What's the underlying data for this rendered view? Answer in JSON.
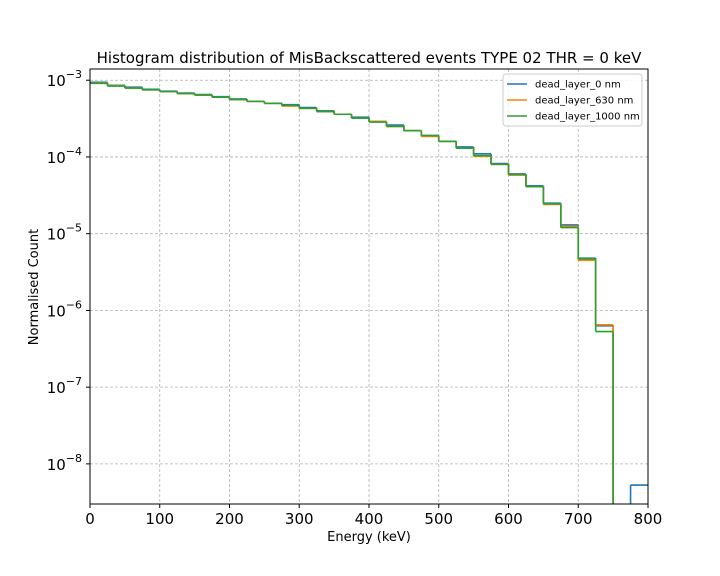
{
  "chart_data": {
    "type": "line",
    "drawstyle": "steps",
    "title": "Histogram distribution of MisBackscattered events TYPE 02 THR = 0 keV",
    "xlabel": "Energy (keV)",
    "ylabel": "Normalised Count",
    "xlim": [
      0,
      800
    ],
    "ylim": [
      3e-09,
      0.0014
    ],
    "yscale": "log",
    "x_ticks": [
      0,
      100,
      200,
      300,
      400,
      500,
      600,
      700,
      800
    ],
    "x_tick_labels": [
      "0",
      "100",
      "200",
      "300",
      "400",
      "500",
      "600",
      "700",
      "800"
    ],
    "y_ticks": [
      1e-08,
      1e-07,
      1e-06,
      1e-05,
      0.0001,
      0.001
    ],
    "y_tick_labels": [
      {
        "base": "10",
        "exp": "−8"
      },
      {
        "base": "10",
        "exp": "−7"
      },
      {
        "base": "10",
        "exp": "−6"
      },
      {
        "base": "10",
        "exp": "−5"
      },
      {
        "base": "10",
        "exp": "−4"
      },
      {
        "base": "10",
        "exp": "−3"
      }
    ],
    "grid": true,
    "legend_position": "top-right",
    "bin_edges": [
      0,
      25,
      50,
      75,
      100,
      125,
      150,
      175,
      200,
      225,
      250,
      275,
      300,
      325,
      350,
      375,
      400,
      425,
      450,
      475,
      500,
      525,
      550,
      575,
      600,
      625,
      650,
      675,
      700,
      725,
      750,
      775
    ],
    "series": [
      {
        "name": "dead_layer_0 nm",
        "color": "#1f77b4",
        "values": [
          0.00094,
          0.00086,
          0.00081,
          0.00076,
          0.00072,
          0.00068,
          0.00065,
          0.00061,
          0.00057,
          0.00053,
          0.0005,
          0.00048,
          0.00044,
          0.0004,
          0.00036,
          0.00033,
          0.00029,
          0.00026,
          0.00022,
          0.00019,
          0.00016,
          0.000135,
          0.00011,
          8.2e-05,
          6e-05,
          4.2e-05,
          2.5e-05,
          1.3e-05,
          4.8e-06,
          6.3e-07,
          0,
          5.3e-09
        ]
      },
      {
        "name": "dead_layer_630 nm",
        "color": "#ff7f0e",
        "values": [
          0.00092,
          0.00085,
          0.00079,
          0.00075,
          0.00071,
          0.00067,
          0.00064,
          0.0006,
          0.00056,
          0.00053,
          0.0005,
          0.00046,
          0.00043,
          0.00039,
          0.00036,
          0.00032,
          0.00029,
          0.00025,
          0.00022,
          0.000185,
          0.00016,
          0.00013,
          0.000102,
          8e-05,
          5.8e-05,
          4.1e-05,
          2.4e-05,
          1.25e-05,
          4.5e-06,
          6.5e-07,
          0,
          0
        ]
      },
      {
        "name": "dead_layer_1000 nm",
        "color": "#2ca02c",
        "values": [
          0.00091,
          0.00084,
          0.00079,
          0.00075,
          0.00071,
          0.00067,
          0.00064,
          0.0006,
          0.00056,
          0.00053,
          0.0005,
          0.00047,
          0.00043,
          0.00039,
          0.00036,
          0.00032,
          0.000285,
          0.00025,
          0.00022,
          0.00019,
          0.00016,
          0.00013,
          0.000104,
          8e-05,
          5.9e-05,
          4.1e-05,
          2.45e-05,
          1.2e-05,
          4.7e-06,
          5.3e-07,
          0,
          0
        ]
      }
    ]
  }
}
